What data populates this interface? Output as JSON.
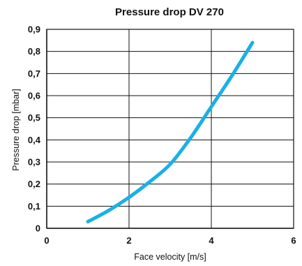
{
  "chart_data": {
    "type": "line",
    "title": "Pressure drop DV 270",
    "xlabel": "Face velocity [m/s]",
    "ylabel": "Pressure drop [mbar]",
    "xlim": [
      0,
      6
    ],
    "ylim": [
      0,
      0.9
    ],
    "x_ticks": [
      {
        "value": 0,
        "label": "0"
      },
      {
        "value": 2,
        "label": "2"
      },
      {
        "value": 4,
        "label": "4"
      },
      {
        "value": 6,
        "label": "6"
      }
    ],
    "y_ticks": [
      {
        "value": 0,
        "label": "0"
      },
      {
        "value": 0.1,
        "label": "0,1"
      },
      {
        "value": 0.2,
        "label": "0,2"
      },
      {
        "value": 0.3,
        "label": "0,3"
      },
      {
        "value": 0.4,
        "label": "0,4"
      },
      {
        "value": 0.5,
        "label": "0,5"
      },
      {
        "value": 0.6,
        "label": "0,6"
      },
      {
        "value": 0.7,
        "label": "0,7"
      },
      {
        "value": 0.8,
        "label": "0,8"
      },
      {
        "value": 0.9,
        "label": "0,9"
      }
    ],
    "grid": true,
    "series": [
      {
        "color": "#1ab0e6",
        "x": [
          1.0,
          1.5,
          2.0,
          2.5,
          3.0,
          3.5,
          4.0,
          4.5,
          5.0
        ],
        "y": [
          0.03,
          0.08,
          0.14,
          0.21,
          0.29,
          0.41,
          0.55,
          0.69,
          0.84
        ]
      }
    ]
  }
}
